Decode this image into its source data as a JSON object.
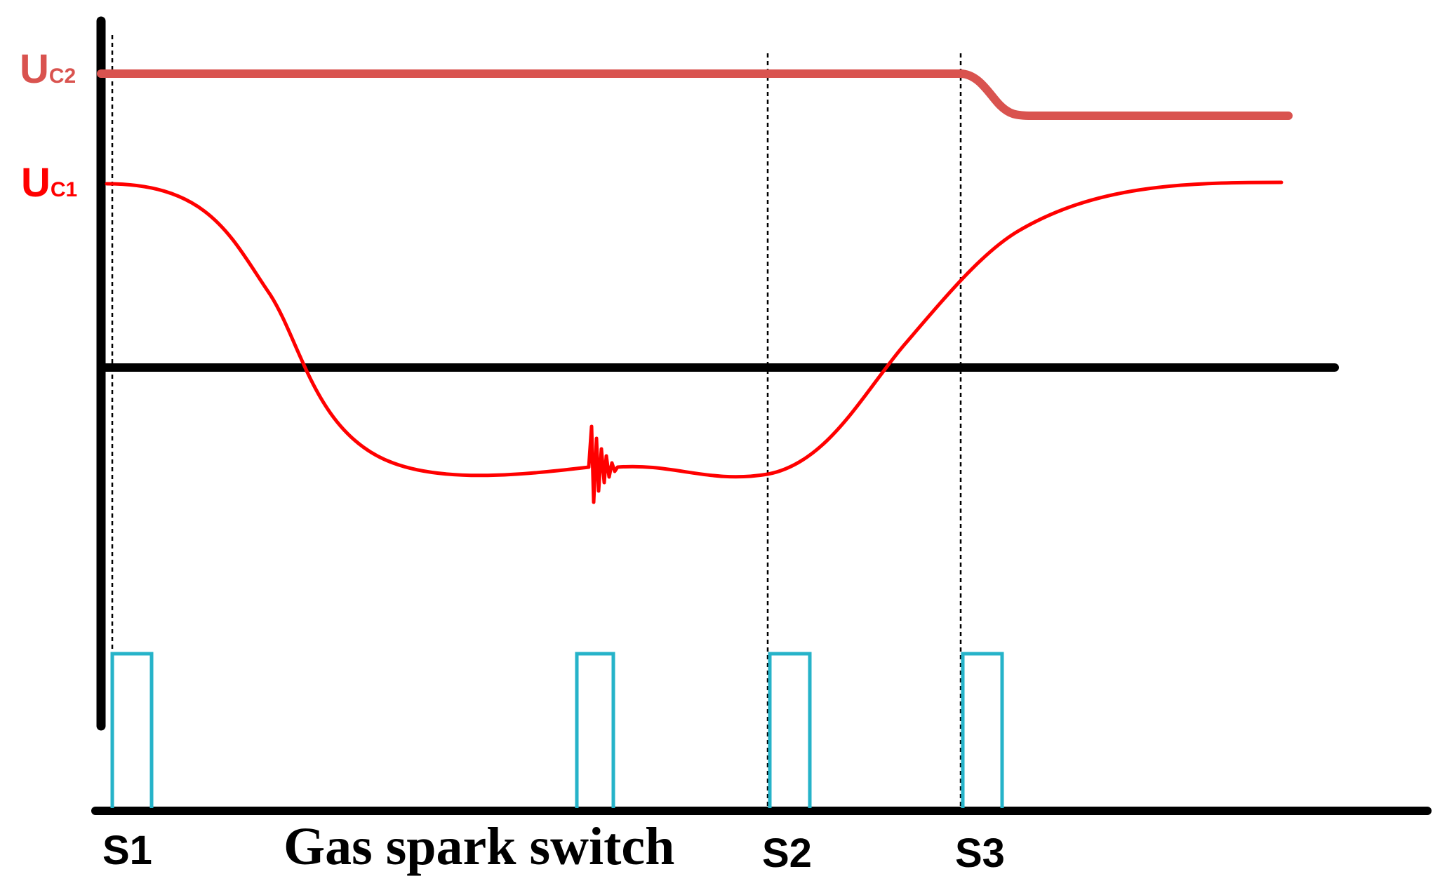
{
  "colors": {
    "uc2": "#d9534f",
    "uc1": "#ff0000",
    "pulse": "#26b3c9",
    "axis": "#000000"
  },
  "labels": {
    "uc2_main": "U",
    "uc2_sub": "C2",
    "uc1_main": "U",
    "uc1_sub": "C1",
    "s1": "S1",
    "gas_spark_switch": "Gas spark switch",
    "s2": "S2",
    "s3": "S3"
  },
  "events": [
    "S1",
    "Gas spark switch",
    "S2",
    "S3"
  ]
}
